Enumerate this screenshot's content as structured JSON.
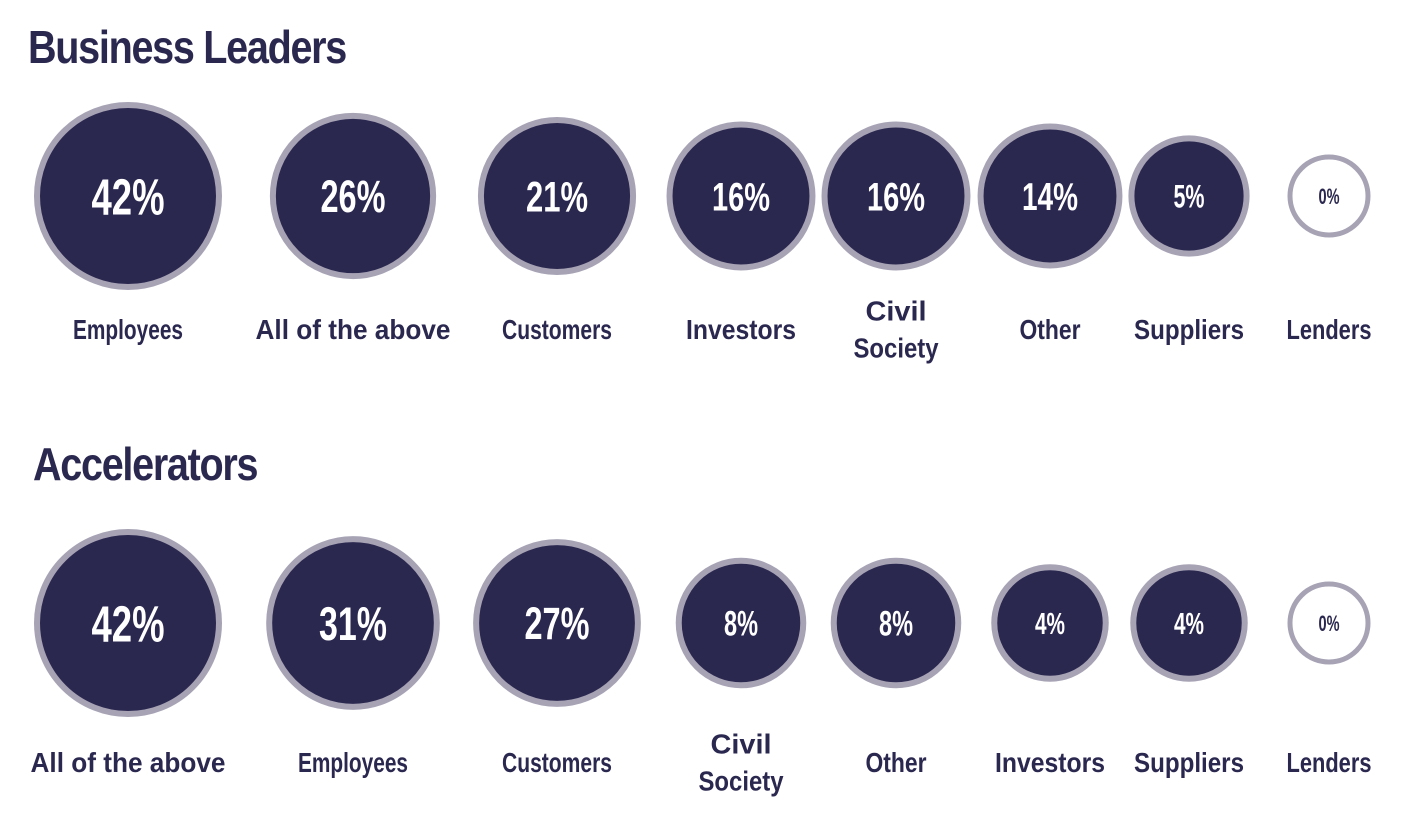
{
  "colors": {
    "bubble_fill": "#2b2850",
    "bubble_ring": "#a7a3b5",
    "empty_fill": "#ffffff",
    "text_dark": "#2b2850",
    "text_light": "#ffffff"
  },
  "chart_data": [
    {
      "type": "bubble",
      "title": "Business Leaders",
      "categories": [
        "Employees",
        "All of the above",
        "Customers",
        "Investors",
        "Civil Society",
        "Other",
        "Suppliers",
        "Lenders"
      ],
      "values": [
        42,
        26,
        21,
        16,
        16,
        14,
        5,
        0
      ],
      "value_labels": [
        "42%",
        "26%",
        "21%",
        "16%",
        "16%",
        "14%",
        "5%",
        "0%"
      ],
      "label_lines": [
        [
          "Employees"
        ],
        [
          "All of the above"
        ],
        [
          "Customers"
        ],
        [
          "Investors"
        ],
        [
          "Civil",
          "Society"
        ],
        [
          "Other"
        ],
        [
          "Suppliers"
        ],
        [
          "Lenders"
        ]
      ]
    },
    {
      "type": "bubble",
      "title": "Accelerators",
      "categories": [
        "All of the above",
        "Employees",
        "Customers",
        "Civil Society",
        "Other",
        "Investors",
        "Suppliers",
        "Lenders"
      ],
      "values": [
        42,
        31,
        27,
        8,
        8,
        4,
        4,
        0
      ],
      "value_labels": [
        "42%",
        "31%",
        "27%",
        "8%",
        "8%",
        "4%",
        "4%",
        "0%"
      ],
      "label_lines": [
        [
          "All of the above"
        ],
        [
          "Employees"
        ],
        [
          "Customers"
        ],
        [
          "Civil",
          "Society"
        ],
        [
          "Other"
        ],
        [
          "Investors"
        ],
        [
          "Suppliers"
        ],
        [
          "Lenders"
        ]
      ]
    }
  ]
}
